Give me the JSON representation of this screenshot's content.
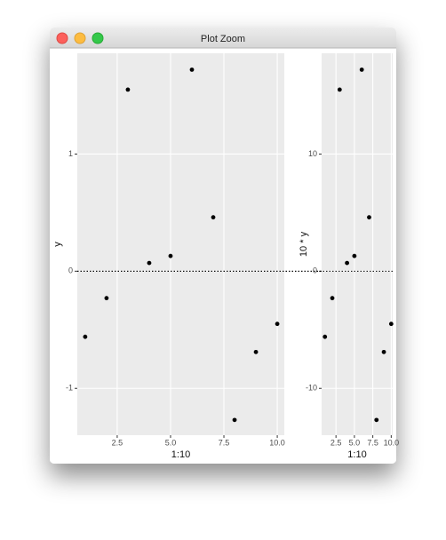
{
  "window": {
    "title": "Plot Zoom"
  },
  "chart_data": [
    {
      "type": "scatter",
      "x_label": "1:10",
      "y_label": "y",
      "x": [
        1,
        2,
        3,
        4,
        5,
        6,
        7,
        8,
        9,
        10
      ],
      "values": [
        -0.56,
        -0.23,
        1.55,
        0.07,
        0.13,
        1.72,
        0.46,
        -1.27,
        -0.69,
        -0.45
      ],
      "color": "#000000",
      "xlim": [
        0.63,
        10.33
      ],
      "ylim": [
        -1.4,
        1.86
      ],
      "xticks": [
        2.5,
        {
          "value": 5,
          "label": "5.0"
        },
        7.5,
        {
          "value": 10,
          "label": "10.0"
        }
      ],
      "yticks": [
        -1,
        0,
        1
      ],
      "hline": 0,
      "grid": true
    },
    {
      "type": "scatter",
      "x_label": "1:10",
      "y_label": "10 * y",
      "x": [
        1,
        2,
        3,
        4,
        5,
        6,
        7,
        8,
        9,
        10
      ],
      "values": [
        -5.6,
        -2.3,
        15.5,
        0.7,
        1.3,
        17.2,
        4.6,
        -12.7,
        -6.9,
        -4.5
      ],
      "color": "#000000",
      "xlim": [
        0.55,
        10.2
      ],
      "ylim": [
        -14,
        18.6
      ],
      "xticks": [
        2.5,
        {
          "value": 5,
          "label": "5.0"
        },
        7.5,
        {
          "value": 10,
          "label": "10.0"
        }
      ],
      "yticks": [
        -10,
        0,
        10
      ],
      "hline": 0,
      "grid": true
    }
  ]
}
